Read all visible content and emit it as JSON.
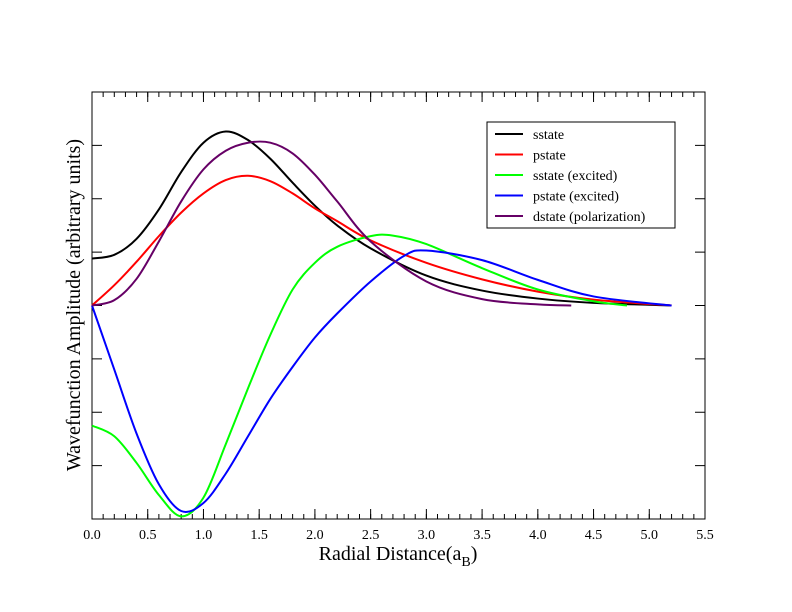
{
  "chart_data": {
    "type": "line",
    "xlabel": {
      "text": "Radial Distance(a",
      "subscript": "B",
      "suffix": ")"
    },
    "ylabel": "Wavefunction Amplitude (arbitrary units)",
    "xlim": [
      0,
      5.5
    ],
    "ylim": [
      -4,
      4
    ],
    "xticks": [
      {
        "value": 0,
        "label": "0.0"
      },
      {
        "value": 0.5,
        "label": "0.5"
      },
      {
        "value": 1,
        "label": "1.0"
      },
      {
        "value": 1.5,
        "label": "1.5"
      },
      {
        "value": 2,
        "label": "2.0"
      },
      {
        "value": 2.5,
        "label": "2.5"
      },
      {
        "value": 3,
        "label": "3.0"
      },
      {
        "value": 3.5,
        "label": "3.5"
      },
      {
        "value": 4,
        "label": "4.0"
      },
      {
        "value": 4.5,
        "label": "4.5"
      },
      {
        "value": 5,
        "label": "5.0"
      },
      {
        "value": 5.5,
        "label": "5.5"
      }
    ],
    "xminor": 0.1,
    "yticks": [
      -3,
      -2,
      -1,
      0,
      1,
      2,
      3
    ],
    "ytick_labels": false,
    "legend": "upper right",
    "series": [
      {
        "name": "sstate",
        "color": "#000000",
        "x": [
          0,
          0.2,
          0.4,
          0.6,
          0.8,
          1.0,
          1.2,
          1.4,
          1.6,
          1.8,
          2.0,
          2.2,
          2.5,
          3.0,
          3.5,
          4.0,
          4.5,
          5.2
        ],
        "values": [
          0.88,
          0.95,
          1.25,
          1.8,
          2.5,
          3.05,
          3.26,
          3.1,
          2.75,
          2.3,
          1.87,
          1.5,
          1.07,
          0.56,
          0.28,
          0.13,
          0.05,
          0
        ]
      },
      {
        "name": "pstate",
        "color": "#ff0000",
        "x": [
          0,
          0.2,
          0.4,
          0.6,
          0.8,
          1.0,
          1.2,
          1.4,
          1.6,
          1.8,
          2.0,
          2.2,
          2.5,
          3.0,
          3.5,
          4.0,
          4.5,
          5.2
        ],
        "values": [
          0,
          0.38,
          0.82,
          1.3,
          1.74,
          2.1,
          2.35,
          2.43,
          2.33,
          2.1,
          1.82,
          1.58,
          1.22,
          0.8,
          0.49,
          0.26,
          0.11,
          0
        ]
      },
      {
        "name": "sstate (excited)",
        "color": "#00ff00",
        "x": [
          0,
          0.2,
          0.4,
          0.6,
          0.8,
          1.0,
          1.2,
          1.4,
          1.6,
          1.8,
          2.0,
          2.2,
          2.5,
          2.7,
          3.0,
          3.5,
          4.0,
          4.5,
          4.8
        ],
        "values": [
          -2.25,
          -2.45,
          -2.95,
          -3.55,
          -3.95,
          -3.6,
          -2.6,
          -1.55,
          -0.55,
          0.3,
          0.8,
          1.1,
          1.3,
          1.31,
          1.15,
          0.7,
          0.3,
          0.08,
          0
        ]
      },
      {
        "name": "pstate (excited)",
        "color": "#0000ff",
        "x": [
          0,
          0.2,
          0.4,
          0.6,
          0.8,
          1.0,
          1.2,
          1.4,
          1.6,
          1.8,
          2.0,
          2.2,
          2.5,
          2.8,
          3.0,
          3.5,
          4.0,
          4.5,
          5.2
        ],
        "values": [
          0,
          -1.2,
          -2.4,
          -3.35,
          -3.85,
          -3.7,
          -3.15,
          -2.45,
          -1.75,
          -1.15,
          -0.6,
          -0.15,
          0.45,
          0.93,
          1.03,
          0.85,
          0.48,
          0.17,
          0
        ]
      },
      {
        "name": "dstate (polarization)",
        "color": "#660066",
        "x": [
          0,
          0.2,
          0.4,
          0.6,
          0.8,
          1.0,
          1.2,
          1.4,
          1.6,
          1.8,
          2.0,
          2.2,
          2.5,
          3.0,
          3.5,
          4.0,
          4.3
        ],
        "values": [
          0,
          0.1,
          0.5,
          1.2,
          1.95,
          2.55,
          2.9,
          3.05,
          3.05,
          2.85,
          2.45,
          1.95,
          1.2,
          0.45,
          0.12,
          0.02,
          0
        ]
      }
    ]
  }
}
